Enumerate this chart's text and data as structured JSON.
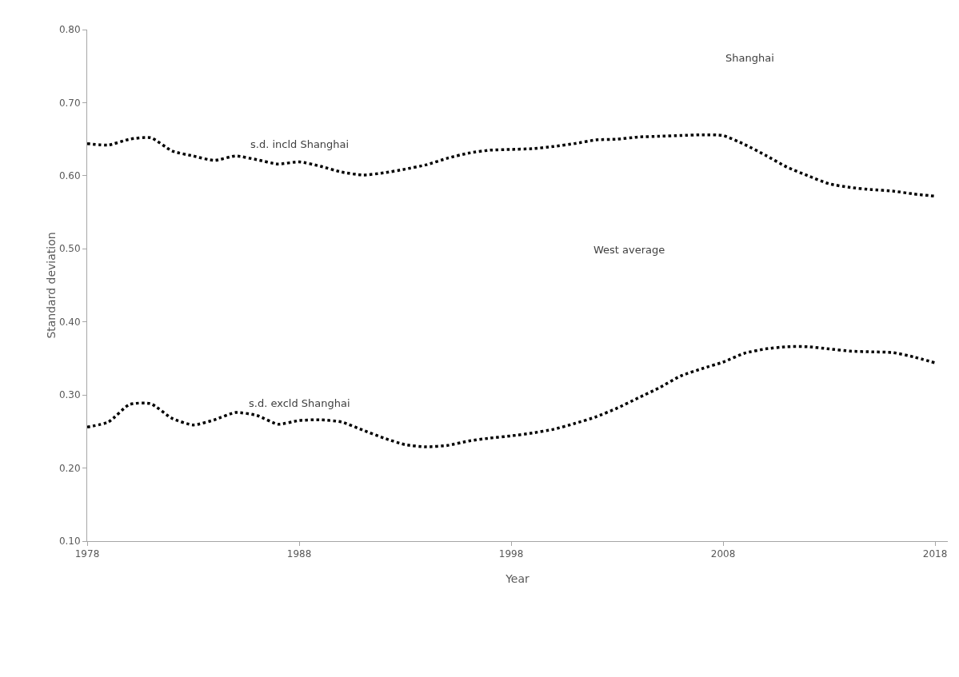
{
  "chart_data": {
    "type": "line",
    "xlabel": "Year",
    "ylabel": "Standard deviation",
    "x": [
      1978,
      1979,
      1980,
      1981,
      1982,
      1983,
      1984,
      1985,
      1986,
      1987,
      1988,
      1989,
      1990,
      1991,
      1992,
      1993,
      1994,
      1995,
      1996,
      1997,
      1998,
      1999,
      2000,
      2001,
      2002,
      2003,
      2004,
      2005,
      2006,
      2007,
      2008,
      2009,
      2010,
      2011,
      2012,
      2013,
      2014,
      2015,
      2016,
      2017,
      2018
    ],
    "series": [
      {
        "name": "s.d. incld Shanghai",
        "color": "#000000",
        "values": [
          0.644,
          0.642,
          0.65,
          0.652,
          0.634,
          0.627,
          0.621,
          0.627,
          0.622,
          0.616,
          0.619,
          0.613,
          0.605,
          0.601,
          0.604,
          0.609,
          0.615,
          0.624,
          0.631,
          0.635,
          0.636,
          0.637,
          0.64,
          0.644,
          0.649,
          0.65,
          0.653,
          0.654,
          0.655,
          0.656,
          0.655,
          0.643,
          0.628,
          0.612,
          0.6,
          0.589,
          0.584,
          0.581,
          0.579,
          0.575,
          0.572
        ]
      },
      {
        "name": "s.d. excld Shanghai",
        "color": "#000000",
        "values": [
          0.256,
          0.263,
          0.287,
          0.288,
          0.268,
          0.259,
          0.266,
          0.276,
          0.272,
          0.26,
          0.265,
          0.266,
          0.263,
          0.252,
          0.241,
          0.232,
          0.229,
          0.231,
          0.237,
          0.241,
          0.244,
          0.248,
          0.253,
          0.261,
          0.27,
          0.282,
          0.296,
          0.31,
          0.326,
          0.336,
          0.345,
          0.357,
          0.363,
          0.366,
          0.366,
          0.363,
          0.36,
          0.359,
          0.358,
          0.352,
          0.344
        ]
      }
    ],
    "annotations": [
      "Shanghai",
      "West average"
    ],
    "xlim": [
      1978,
      2018.6
    ],
    "xticks": [
      1978,
      1988,
      1998,
      2008,
      2018
    ],
    "ylim": [
      0.1,
      0.8
    ],
    "yticks": [
      {
        "value": 0.1,
        "label": "0.10"
      },
      {
        "value": 0.2,
        "label": "0.20"
      },
      {
        "value": 0.3,
        "label": "0.30"
      },
      {
        "value": 0.4,
        "label": "0.40"
      },
      {
        "value": 0.5,
        "label": "0.50"
      },
      {
        "value": 0.6,
        "label": "0.60"
      },
      {
        "value": 0.7,
        "label": "0.70"
      },
      {
        "value": 0.8,
        "label": "0.80"
      }
    ],
    "grid": false,
    "legend": false,
    "marker": "none",
    "line_style": "dotted"
  }
}
